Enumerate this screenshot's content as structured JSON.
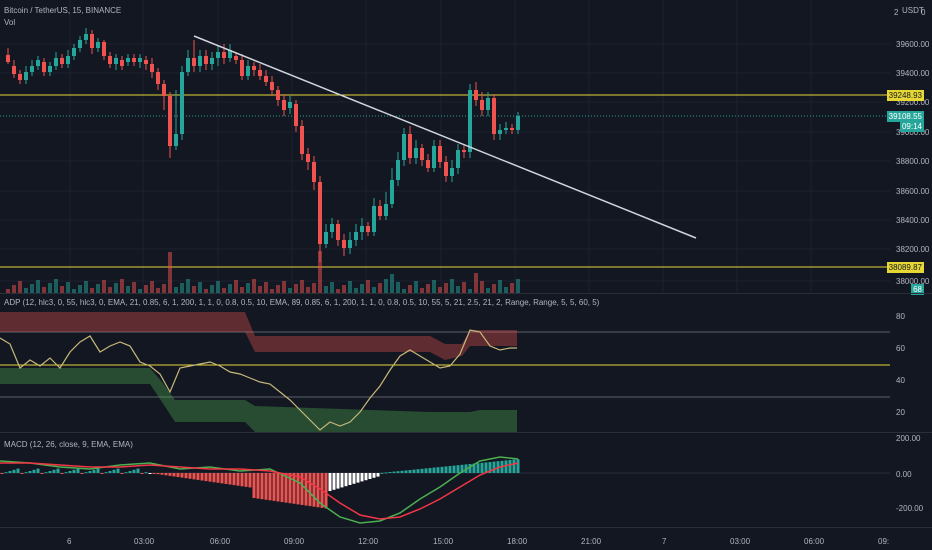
{
  "header": {
    "symbol": "Bitcoin / TetherUS, 15, BINANCE",
    "volume_label": "Vol",
    "currency": "USDT",
    "scale_btn_1": "2",
    "scale_btn_2": "0"
  },
  "price_axis": {
    "ticks": [
      "39600.00",
      "39400.00",
      "39200.00",
      "39000.00",
      "38800.00",
      "38600.00",
      "38400.00",
      "38200.00",
      "38000.00"
    ]
  },
  "price_tags": {
    "upper_line": "39248.93",
    "current_price": "39108.55",
    "countdown": "09:14",
    "lower_line": "38089.87",
    "volume_value": "68"
  },
  "adp": {
    "label": "ADP (12, hlc3, 0, 55, hlc3, 0, EMA, 21, 0.85, 6, 1, 200, 1, 1, 0, 0.8, 0.5, 10, EMA, 89, 0.85, 6, 1, 200, 1, 1, 0, 0.8, 0.5, 10, 55, 5, 21, 2.5, 21, 2, Range, Range, 5, 5, 60, 5)",
    "ticks": [
      "80",
      "60",
      "40",
      "20"
    ]
  },
  "macd": {
    "label": "MACD (12, 26, close, 9, EMA, EMA)",
    "ticks": [
      "200.00",
      "0.00",
      "-200.00"
    ]
  },
  "time_axis": {
    "labels": [
      "6",
      "03:00",
      "06:00",
      "09:00",
      "12:00",
      "15:00",
      "18:00",
      "21:00",
      "7",
      "03:00",
      "06:00",
      "09:"
    ]
  },
  "colors": {
    "up": "#26a69a",
    "down": "#ef5350",
    "background": "#131722",
    "trend_line": "#d1d4dc",
    "horizontal_line": "#e6d735",
    "macd_line": "#4caf50",
    "signal_line": "#f23645"
  }
}
